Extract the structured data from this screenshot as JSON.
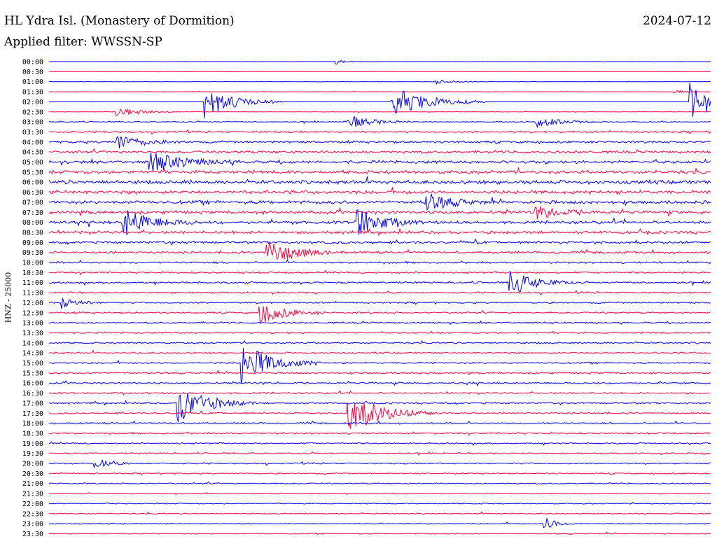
{
  "header": {
    "station": "HL Ydra Isl. (Monastery of Dormition)",
    "date": "2024-07-12",
    "filter": "Applied filter: WWSSN-SP"
  },
  "chart_data": {
    "type": "line",
    "title": "HL Ydra Isl. (Monastery of Dormition)",
    "ylabel": "HNZ - 25000",
    "trace_colors": [
      "#0000ff",
      "#ff0040"
    ],
    "time_labels": [
      "00:00",
      "00:30",
      "01:00",
      "01:30",
      "02:00",
      "02:30",
      "03:00",
      "03:30",
      "04:00",
      "04:30",
      "05:00",
      "05:30",
      "06:00",
      "06:30",
      "07:00",
      "07:30",
      "08:00",
      "08:30",
      "09:00",
      "09:30",
      "10:00",
      "10:30",
      "11:00",
      "11:30",
      "12:00",
      "12:30",
      "13:00",
      "13:30",
      "14:00",
      "14:30",
      "15:00",
      "15:30",
      "16:00",
      "16:30",
      "17:00",
      "17:30",
      "18:00",
      "18:30",
      "19:00",
      "19:30",
      "20:00",
      "20:30",
      "21:00",
      "21:30",
      "22:00",
      "22:30",
      "23:00",
      "23:30"
    ],
    "row_noise_level": [
      0.08,
      0.08,
      0.1,
      0.1,
      0.1,
      0.12,
      0.3,
      0.5,
      0.6,
      0.7,
      0.8,
      0.9,
      1.0,
      0.95,
      0.9,
      0.85,
      0.8,
      0.75,
      0.7,
      0.6,
      0.55,
      0.5,
      0.5,
      0.45,
      0.45,
      0.45,
      0.45,
      0.45,
      0.45,
      0.45,
      0.45,
      0.45,
      0.45,
      0.45,
      0.45,
      0.45,
      0.45,
      0.45,
      0.4,
      0.4,
      0.4,
      0.35,
      0.35,
      0.3,
      0.3,
      0.3,
      0.3,
      0.3
    ],
    "events": [
      {
        "row": 0,
        "x_min": 12.9,
        "amp": 6,
        "dur_min": 0.3
      },
      {
        "row": 2,
        "x_min": 17.5,
        "amp": 3,
        "dur_min": 0.8
      },
      {
        "row": 3,
        "x_min": 28.3,
        "amp": 3,
        "dur_min": 0.4
      },
      {
        "row": 4,
        "x_min": 7.0,
        "amp": 25,
        "dur_min": 1.2
      },
      {
        "row": 4,
        "x_min": 29.0,
        "amp": 28,
        "dur_min": 1.2
      },
      {
        "row": 4,
        "x_min": 15.5,
        "amp": 22,
        "dur_min": 1.5
      },
      {
        "row": 5,
        "x_min": 3.0,
        "amp": 8,
        "dur_min": 1.0
      },
      {
        "row": 6,
        "x_min": 13.5,
        "amp": 10,
        "dur_min": 1.0
      },
      {
        "row": 6,
        "x_min": 22.0,
        "amp": 8,
        "dur_min": 1.0
      },
      {
        "row": 8,
        "x_min": 3.0,
        "amp": 12,
        "dur_min": 1.0
      },
      {
        "row": 10,
        "x_min": 4.5,
        "amp": 14,
        "dur_min": 1.5
      },
      {
        "row": 14,
        "x_min": 17.0,
        "amp": 14,
        "dur_min": 1.0
      },
      {
        "row": 15,
        "x_min": 22.0,
        "amp": 10,
        "dur_min": 1.0
      },
      {
        "row": 16,
        "x_min": 3.3,
        "amp": 20,
        "dur_min": 1.2
      },
      {
        "row": 16,
        "x_min": 13.8,
        "amp": 26,
        "dur_min": 1.0
      },
      {
        "row": 19,
        "x_min": 9.8,
        "amp": 20,
        "dur_min": 1.2
      },
      {
        "row": 22,
        "x_min": 20.8,
        "amp": 20,
        "dur_min": 1.0
      },
      {
        "row": 24,
        "x_min": 0.5,
        "amp": 10,
        "dur_min": 0.6
      },
      {
        "row": 25,
        "x_min": 9.5,
        "amp": 18,
        "dur_min": 1.0
      },
      {
        "row": 30,
        "x_min": 8.7,
        "amp": 30,
        "dur_min": 1.2
      },
      {
        "row": 34,
        "x_min": 5.8,
        "amp": 28,
        "dur_min": 1.2
      },
      {
        "row": 35,
        "x_min": 13.5,
        "amp": 30,
        "dur_min": 1.4
      },
      {
        "row": 40,
        "x_min": 2.0,
        "amp": 8,
        "dur_min": 0.6
      },
      {
        "row": 46,
        "x_min": 22.4,
        "amp": 10,
        "dur_min": 0.5
      }
    ]
  }
}
